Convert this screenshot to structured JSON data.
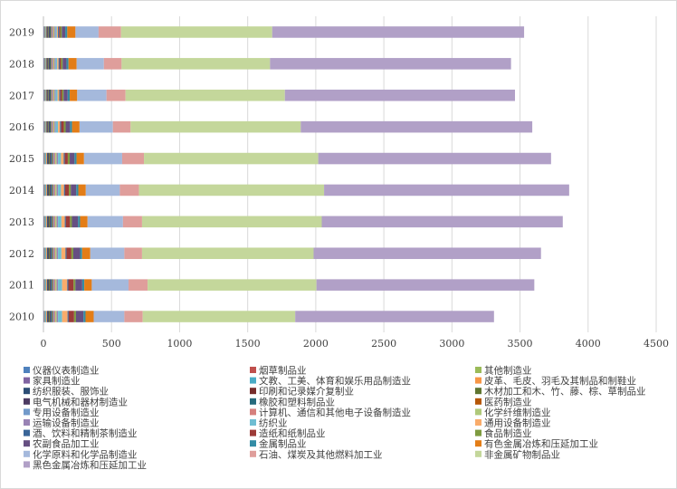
{
  "chart_data": {
    "type": "bar",
    "orientation": "horizontal",
    "stacked": true,
    "title": "",
    "xlabel": "",
    "ylabel": "",
    "xlim": [
      0,
      4500
    ],
    "xticks": [
      0,
      500,
      1000,
      1500,
      2000,
      2500,
      3000,
      3500,
      4000,
      4500
    ],
    "grid": true,
    "legend_position": "bottom",
    "categories": [
      "2010",
      "2011",
      "2012",
      "2013",
      "2014",
      "2015",
      "2016",
      "2017",
      "2018",
      "2019"
    ],
    "series": [
      {
        "name": "仪器仪表制造业",
        "color": "#4f81bd",
        "values": [
          5,
          5,
          5,
          5,
          5,
          5,
          5,
          5,
          5,
          5
        ]
      },
      {
        "name": "烟草制品业",
        "color": "#c0504d",
        "values": [
          2,
          2,
          2,
          2,
          2,
          2,
          2,
          2,
          2,
          2
        ]
      },
      {
        "name": "其他制造业",
        "color": "#9bbb59",
        "values": [
          4,
          4,
          4,
          4,
          4,
          4,
          3,
          3,
          3,
          3
        ]
      },
      {
        "name": "家具制造业",
        "color": "#8064a2",
        "values": [
          4,
          4,
          4,
          4,
          4,
          4,
          3,
          3,
          3,
          3
        ]
      },
      {
        "name": "文教、工美、体育和娱乐用品制造业",
        "color": "#4bacc6",
        "values": [
          6,
          6,
          6,
          6,
          6,
          6,
          5,
          5,
          5,
          5
        ]
      },
      {
        "name": "皮革、毛皮、羽毛及其制品和制鞋业",
        "color": "#f79646",
        "values": [
          6,
          6,
          6,
          6,
          6,
          6,
          5,
          5,
          5,
          5
        ]
      },
      {
        "name": "纺织服装、服饰业",
        "color": "#2c4d75",
        "values": [
          10,
          10,
          10,
          10,
          10,
          10,
          8,
          8,
          8,
          8
        ]
      },
      {
        "name": "印刷和记录媒介复制业",
        "color": "#772c2a",
        "values": [
          4,
          4,
          4,
          4,
          4,
          4,
          3,
          3,
          3,
          3
        ]
      },
      {
        "name": "木材加工和木、竹、藤、棕、草制品业",
        "color": "#5f7530",
        "values": [
          6,
          6,
          6,
          6,
          6,
          6,
          5,
          5,
          5,
          5
        ]
      },
      {
        "name": "电气机械和器材制造业",
        "color": "#4d3b62",
        "values": [
          8,
          8,
          8,
          8,
          8,
          8,
          7,
          7,
          7,
          7
        ]
      },
      {
        "name": "橡胶和塑料制品业",
        "color": "#276a7c",
        "values": [
          10,
          10,
          10,
          10,
          10,
          10,
          8,
          8,
          8,
          8
        ]
      },
      {
        "name": "医药制造业",
        "color": "#b65708",
        "values": [
          6,
          6,
          6,
          6,
          6,
          6,
          5,
          5,
          5,
          5
        ]
      },
      {
        "name": "专用设备制造业",
        "color": "#729aca",
        "values": [
          8,
          8,
          8,
          8,
          8,
          8,
          7,
          7,
          7,
          7
        ]
      },
      {
        "name": "计算机、通信和其他电子设备制造业",
        "color": "#d6807d",
        "values": [
          8,
          8,
          8,
          8,
          8,
          8,
          7,
          7,
          7,
          7
        ]
      },
      {
        "name": "化学纤维制造业",
        "color": "#afc97a",
        "values": [
          10,
          10,
          10,
          10,
          10,
          10,
          8,
          8,
          8,
          8
        ]
      },
      {
        "name": "运输设备制造业",
        "color": "#9983b5",
        "values": [
          10,
          10,
          10,
          10,
          10,
          10,
          8,
          8,
          8,
          8
        ]
      },
      {
        "name": "纺织业",
        "color": "#6fbdd2",
        "values": [
          30,
          30,
          25,
          25,
          22,
          22,
          18,
          15,
          12,
          10
        ]
      },
      {
        "name": "通用设备制造业",
        "color": "#f9ac6b",
        "values": [
          40,
          38,
          30,
          25,
          22,
          20,
          15,
          12,
          10,
          8
        ]
      },
      {
        "name": "酒、饮料和精制茶制造业",
        "color": "#3a6598",
        "values": [
          8,
          8,
          8,
          8,
          8,
          8,
          8,
          8,
          8,
          8
        ]
      },
      {
        "name": "造纸和纸制品业",
        "color": "#9d3b38",
        "values": [
          40,
          38,
          35,
          30,
          28,
          22,
          20,
          12,
          10,
          8
        ]
      },
      {
        "name": "食品制造业",
        "color": "#7e9b40",
        "values": [
          14,
          14,
          14,
          14,
          14,
          14,
          13,
          12,
          12,
          12
        ]
      },
      {
        "name": "农副食品加工业",
        "color": "#664f82",
        "values": [
          55,
          50,
          50,
          45,
          40,
          35,
          32,
          30,
          28,
          25
        ]
      },
      {
        "name": "金属制品业",
        "color": "#338ca5",
        "values": [
          15,
          15,
          15,
          15,
          15,
          15,
          15,
          15,
          15,
          15
        ]
      },
      {
        "name": "有色金属冶炼和压延加工业",
        "color": "#e37d17",
        "values": [
          60,
          55,
          60,
          55,
          55,
          55,
          55,
          55,
          60,
          60
        ]
      },
      {
        "name": "化学原料和化学品制造业",
        "color": "#a5b9dc",
        "values": [
          225,
          270,
          250,
          260,
          250,
          280,
          245,
          215,
          200,
          170
        ]
      },
      {
        "name": "石油、煤炭及其他燃料加工业",
        "color": "#df9e9b",
        "values": [
          135,
          140,
          130,
          140,
          140,
          160,
          130,
          140,
          130,
          165
        ]
      },
      {
        "name": "非金属矿物制品业",
        "color": "#c4d79b",
        "values": [
          1120,
          1240,
          1260,
          1320,
          1360,
          1280,
          1250,
          1170,
          1090,
          1110
        ]
      },
      {
        "name": "黑色金属冶炼和压延加工业",
        "color": "#b1a0c7",
        "values": [
          1460,
          1600,
          1670,
          1770,
          1800,
          1710,
          1700,
          1690,
          1770,
          1850
        ]
      }
    ]
  }
}
